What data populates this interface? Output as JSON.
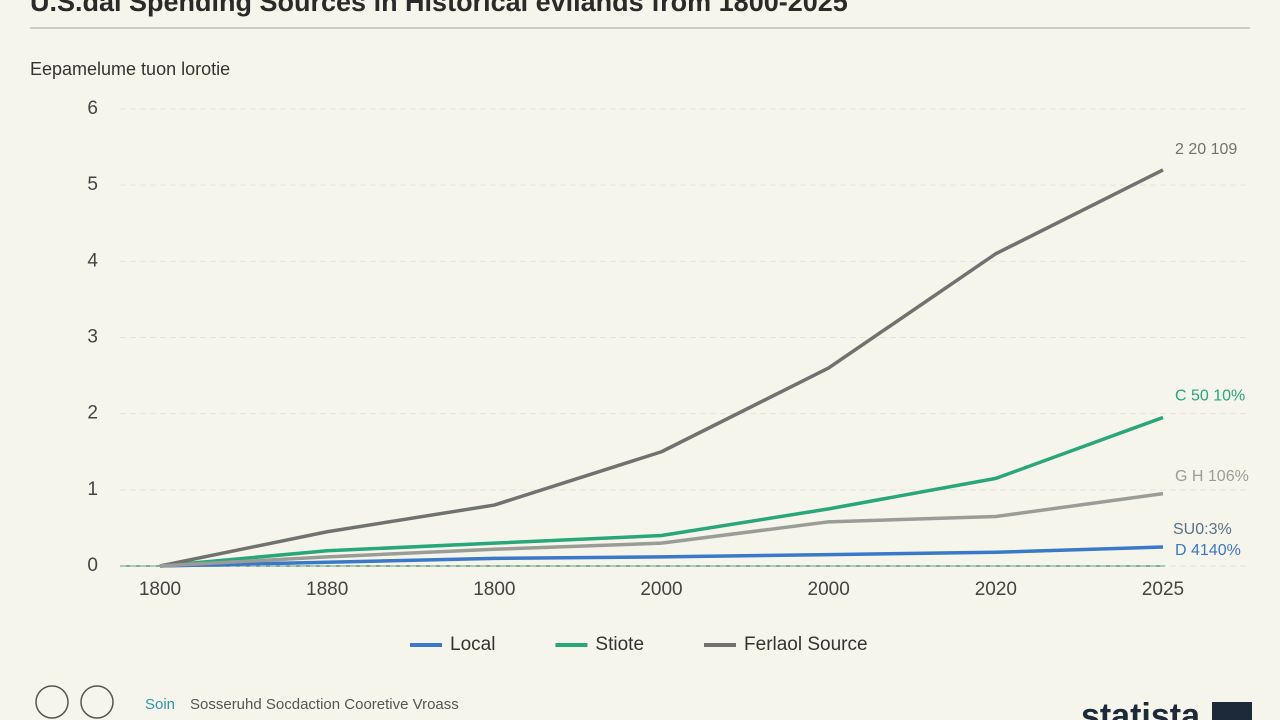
{
  "chart_data": {
    "type": "line",
    "title": "U.S.dal Spending Sources in Historical evilands from 1800-2025",
    "y_label": "Eepamelume tuon lorotie",
    "categories": [
      "1800",
      "1880",
      "1800",
      "2000",
      "2000",
      "2020",
      "2025"
    ],
    "ylim": [
      0,
      6
    ],
    "yticks": [
      0,
      1,
      2,
      3,
      4,
      5,
      6
    ],
    "grid": true,
    "series": [
      {
        "name": "Local",
        "color": "#3a78c9",
        "values": [
          0,
          0.05,
          0.1,
          0.12,
          0.15,
          0.18,
          0.25
        ],
        "end_label": "D 4140%"
      },
      {
        "name": "Stiote",
        "color": "#27a77a",
        "values": [
          0,
          0.2,
          0.3,
          0.4,
          0.75,
          1.15,
          1.95
        ],
        "end_label": "C 50 10%"
      },
      {
        "name": "Ferlaol Source",
        "color": "#6f7270",
        "values": [
          0,
          0.45,
          0.8,
          1.5,
          2.6,
          4.1,
          5.2
        ],
        "end_label": "2 20 109"
      },
      {
        "color": "#9a9c98",
        "values": [
          0,
          0.12,
          0.22,
          0.3,
          0.58,
          0.65,
          0.95
        ],
        "end_label": "G H 106%"
      }
    ],
    "annotations": [
      "SU0:3%"
    ],
    "source_prefix": "Soin",
    "source": "Sosseruhd Socdaction Cooretive Vroass",
    "logo": "statista"
  }
}
